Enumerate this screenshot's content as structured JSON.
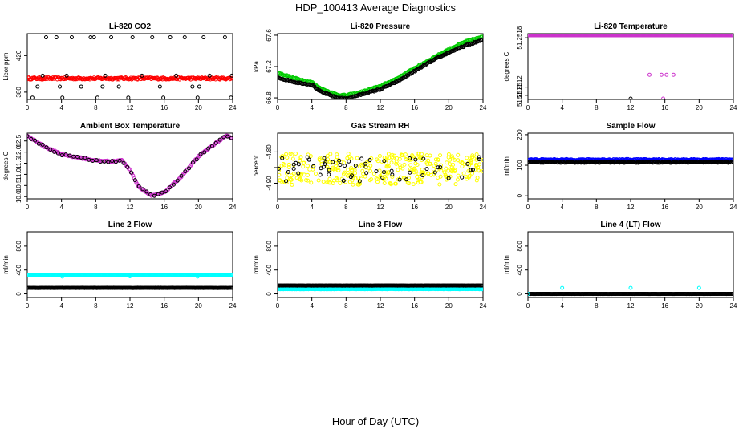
{
  "title": "HDP_100413  Average Diagnostics",
  "xlabel": "Hour of Day (UTC)",
  "colors": {
    "black": "#000000",
    "red": "#ff0000",
    "green": "#00cc00",
    "magenta": "#cc33cc",
    "yellow": "#ffff00",
    "blue": "#0000ff",
    "cyan": "#00ffff"
  },
  "chart_data": [
    {
      "type": "scatter",
      "title": "Li-820 CO2",
      "ylabel": "Licor ppm",
      "xlim": [
        0,
        24
      ],
      "xticks": [
        0,
        4,
        8,
        12,
        16,
        20,
        24
      ],
      "ylim": [
        372,
        444
      ],
      "yticks": [
        380,
        420
      ],
      "ytick_labels": [
        "380",
        "420"
      ],
      "series": [
        {
          "name": "avg",
          "color": "red",
          "style": "dense",
          "y": 395,
          "noise": 1.2
        },
        {
          "name": "outliers",
          "color": "black",
          "style": "scatter",
          "values": [
            [
              0.6,
              374
            ],
            [
              2.2,
              440
            ],
            [
              1.8,
              398
            ],
            [
              3.4,
              440
            ],
            [
              3.8,
              386
            ],
            [
              4.1,
              374
            ],
            [
              4.6,
              398
            ],
            [
              5.2,
              440
            ],
            [
              6.3,
              386
            ],
            [
              7.4,
              440
            ],
            [
              7.8,
              440
            ],
            [
              8.2,
              374
            ],
            [
              9.1,
              398
            ],
            [
              9.8,
              440
            ],
            [
              10.7,
              386
            ],
            [
              11.8,
              374
            ],
            [
              12.3,
              440
            ],
            [
              13.4,
              398
            ],
            [
              14.6,
              440
            ],
            [
              15.5,
              386
            ],
            [
              15.9,
              374
            ],
            [
              16.7,
              440
            ],
            [
              17.4,
              398
            ],
            [
              18.4,
              440
            ],
            [
              19.3,
              386
            ],
            [
              19.9,
              374
            ],
            [
              20.6,
              440
            ],
            [
              21.3,
              398
            ],
            [
              23.1,
              440
            ],
            [
              23.8,
              374
            ],
            [
              23.9,
              398
            ],
            [
              1.2,
              386
            ],
            [
              8.8,
              386
            ],
            [
              20.1,
              386
            ]
          ]
        }
      ]
    },
    {
      "type": "scatter",
      "title": "Li-820 Pressure",
      "ylabel": "kPa",
      "xlim": [
        0,
        24
      ],
      "xticks": [
        0,
        4,
        8,
        12,
        16,
        20,
        24
      ],
      "ylim": [
        66.78,
        67.62
      ],
      "yticks": [
        66.8,
        67.2,
        67.6
      ],
      "ytick_labels": [
        "66.8",
        "67.2",
        "67.6"
      ],
      "series": [
        {
          "name": "green",
          "color": "green",
          "style": "curve",
          "offset": 0.03,
          "knots": [
            [
              0,
              67.12
            ],
            [
              2,
              67.05
            ],
            [
              4,
              67.0
            ],
            [
              5,
              66.92
            ],
            [
              7,
              66.84
            ],
            [
              8,
              66.83
            ],
            [
              10,
              66.88
            ],
            [
              12,
              66.95
            ],
            [
              14,
              67.05
            ],
            [
              16,
              67.18
            ],
            [
              18,
              67.3
            ],
            [
              20,
              67.42
            ],
            [
              22,
              67.52
            ],
            [
              24,
              67.58
            ]
          ]
        },
        {
          "name": "black",
          "color": "black",
          "style": "curve",
          "offset": 0,
          "knots": [
            [
              0,
              67.06
            ],
            [
              2,
              67.0
            ],
            [
              4,
              66.97
            ],
            [
              5,
              66.88
            ],
            [
              7,
              66.8
            ],
            [
              8,
              66.79
            ],
            [
              10,
              66.85
            ],
            [
              12,
              66.91
            ],
            [
              14,
              67.01
            ],
            [
              16,
              67.14
            ],
            [
              18,
              67.27
            ],
            [
              20,
              67.38
            ],
            [
              22,
              67.47
            ],
            [
              24,
              67.54
            ]
          ]
        }
      ]
    },
    {
      "type": "scatter",
      "title": "Li-820 Temperature",
      "ylabel": "degrees C",
      "xlim": [
        0,
        24
      ],
      "xticks": [
        0,
        4,
        8,
        12,
        16,
        20,
        24
      ],
      "ylim": [
        51.25105,
        51.25185
      ],
      "yticks": [
        51.2511,
        51.2512,
        51.2518
      ],
      "ytick_labels": [
        "51.2511",
        "51.2512",
        "51.2518"
      ],
      "series": [
        {
          "name": "magenta",
          "color": "magenta",
          "style": "dense",
          "y": 51.25183,
          "noise": 0
        },
        {
          "name": "magenta-low",
          "color": "magenta",
          "style": "scatter",
          "values": [
            [
              14.2,
              51.25135
            ],
            [
              15.6,
              51.25135
            ],
            [
              16.2,
              51.25135
            ],
            [
              17.0,
              51.25135
            ],
            [
              15.8,
              51.25106
            ]
          ]
        },
        {
          "name": "black-low",
          "color": "black",
          "style": "scatter",
          "values": [
            [
              12.0,
              51.25106
            ]
          ]
        }
      ]
    },
    {
      "type": "scatter",
      "title": "Ambient Box Temperature",
      "ylabel": "degrees C",
      "xlim": [
        0,
        24
      ],
      "xticks": [
        0,
        4,
        8,
        12,
        16,
        20,
        24
      ],
      "ylim": [
        9.9,
        12.85
      ],
      "yticks": [
        10.0,
        10.5,
        11.0,
        11.5,
        12.0,
        12.5
      ],
      "ytick_labels": [
        "10.0",
        "10.5",
        "11.0",
        "11.5",
        "12.0",
        "12.5"
      ],
      "series": [
        {
          "name": "magenta",
          "color": "magenta",
          "style": "curve",
          "offset": 0,
          "knots": [
            [
              0,
              12.72
            ],
            [
              2,
              12.25
            ],
            [
              4,
              11.9
            ],
            [
              6,
              11.75
            ],
            [
              8,
              11.62
            ],
            [
              10,
              11.58
            ],
            [
              11,
              11.65
            ],
            [
              12,
              11.2
            ],
            [
              13,
              10.45
            ],
            [
              14.5,
              10.03
            ],
            [
              16,
              10.18
            ],
            [
              18,
              10.9
            ],
            [
              20,
              11.8
            ],
            [
              22,
              12.4
            ],
            [
              23.3,
              12.72
            ],
            [
              24,
              12.65
            ]
          ]
        },
        {
          "name": "black",
          "color": "black",
          "style": "sparse",
          "offset": 0.02,
          "knots": [
            [
              0,
              12.72
            ],
            [
              2,
              12.25
            ],
            [
              4,
              11.9
            ],
            [
              6,
              11.75
            ],
            [
              8,
              11.62
            ],
            [
              10,
              11.58
            ],
            [
              11,
              11.65
            ],
            [
              12,
              11.2
            ],
            [
              13,
              10.45
            ],
            [
              14.5,
              10.03
            ],
            [
              16,
              10.18
            ],
            [
              18,
              10.9
            ],
            [
              20,
              11.8
            ],
            [
              22,
              12.4
            ],
            [
              23.3,
              12.72
            ],
            [
              24,
              12.65
            ]
          ]
        }
      ]
    },
    {
      "type": "scatter",
      "title": "Gas Stream RH",
      "ylabel": "percent",
      "xlim": [
        0,
        24
      ],
      "xticks": [
        0,
        4,
        8,
        12,
        16,
        20,
        24
      ],
      "ylim": [
        -4.95,
        -4.74
      ],
      "yticks": [
        -4.8,
        -4.85,
        -4.9
      ],
      "ytick_labels": [
        "-4.80",
        "",
        "-4.90"
      ],
      "series": [
        {
          "name": "yellow",
          "color": "yellow",
          "style": "noise",
          "y": -4.855,
          "noise": 0.05,
          "count": 340
        },
        {
          "name": "black",
          "color": "black",
          "style": "noise",
          "y": -4.855,
          "noise": 0.04,
          "count": 60
        }
      ]
    },
    {
      "type": "scatter",
      "title": "Sample Flow",
      "ylabel": "ml/min",
      "xlim": [
        0,
        24
      ],
      "xticks": [
        0,
        4,
        8,
        12,
        16,
        20,
        24
      ],
      "ylim": [
        -10,
        205
      ],
      "yticks": [
        0,
        100,
        200
      ],
      "ytick_labels": [
        "0",
        "100",
        "200"
      ],
      "series": [
        {
          "name": "blue",
          "color": "blue",
          "style": "dense",
          "y": 118,
          "noise": 2
        },
        {
          "name": "black",
          "color": "black",
          "style": "dense",
          "y": 110,
          "noise": 2
        }
      ]
    },
    {
      "type": "scatter",
      "title": "Line 2 Flow",
      "ylabel": "ml/min",
      "xlim": [
        0,
        24
      ],
      "xticks": [
        0,
        4,
        8,
        12,
        16,
        20,
        24
      ],
      "ylim": [
        -60,
        1040
      ],
      "yticks": [
        0,
        400,
        800
      ],
      "ytick_labels": [
        "0",
        "400",
        "800"
      ],
      "series": [
        {
          "name": "cyan",
          "color": "cyan",
          "style": "dense",
          "y": 320,
          "noise": 3
        },
        {
          "name": "black",
          "color": "black",
          "style": "dense",
          "y": 100,
          "noise": 2
        },
        {
          "name": "cyan-dips",
          "color": "cyan",
          "style": "scatter",
          "values": [
            [
              4.1,
              290
            ],
            [
              12.0,
              295
            ],
            [
              19.9,
              290
            ]
          ]
        }
      ]
    },
    {
      "type": "scatter",
      "title": "Line 3 Flow",
      "ylabel": "ml/min",
      "xlim": [
        0,
        24
      ],
      "xticks": [
        0,
        4,
        8,
        12,
        16,
        20,
        24
      ],
      "ylim": [
        -60,
        1040
      ],
      "yticks": [
        0,
        400,
        800
      ],
      "ytick_labels": [
        "0",
        "400",
        "800"
      ],
      "series": [
        {
          "name": "cyan",
          "color": "cyan",
          "style": "dense",
          "y": 80,
          "noise": 3
        },
        {
          "name": "black",
          "color": "black",
          "style": "dense",
          "y": 140,
          "noise": 2
        }
      ]
    },
    {
      "type": "scatter",
      "title": "Line 4 (LT) Flow",
      "ylabel": "ml/min",
      "xlim": [
        0,
        24
      ],
      "xticks": [
        0,
        4,
        8,
        12,
        16,
        20,
        24
      ],
      "ylim": [
        -60,
        1040
      ],
      "yticks": [
        0,
        400,
        800
      ],
      "ytick_labels": [
        "0",
        "400",
        "800"
      ],
      "series": [
        {
          "name": "black",
          "color": "black",
          "style": "dense",
          "y": 0,
          "noise": 1
        },
        {
          "name": "cyan",
          "color": "cyan",
          "style": "scatter",
          "values": [
            [
              0,
              0
            ],
            [
              4.0,
              100
            ],
            [
              12.0,
              100
            ],
            [
              20.0,
              100
            ]
          ]
        }
      ]
    }
  ]
}
